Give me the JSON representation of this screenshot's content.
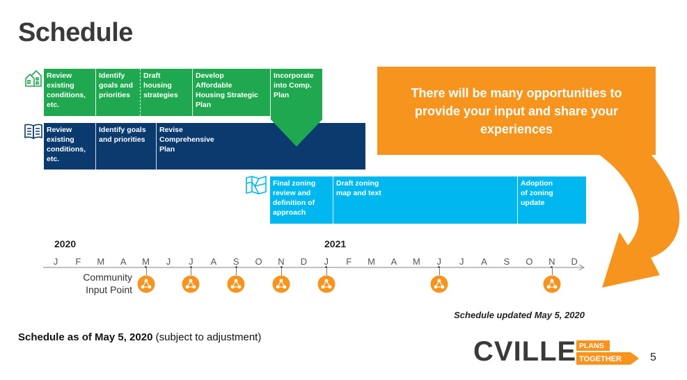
{
  "slide": {
    "title": "Schedule",
    "page_number": "5",
    "footnote_bold": "Schedule as of May 5, 2020",
    "footnote_rest": " (subject to adjustment)",
    "updated_note": "Schedule updated May 5, 2020"
  },
  "tracks": {
    "housing": {
      "icon": "houses-icon",
      "color": "#1fa84f",
      "cells": [
        "Review\nexisting\nconditions,\netc.",
        "Identify\ngoals and\npriorities",
        "Draft\nhousing\nstrategies",
        "Develop\nAffordable\nHousing Strategic\nPlan",
        "Incorporate\ninto Comp.\nPlan"
      ]
    },
    "comp_plan": {
      "icon": "open-book-icon",
      "color": "#0a3a6e",
      "cells": [
        "Review\nexisting\nconditions,\netc.",
        "Identify goals\nand priorities",
        "Revise\nComprehensive\nPlan"
      ]
    },
    "zoning": {
      "icon": "map-icon",
      "color": "#00b7ef",
      "cells": [
        "Final zoning\nreview and\ndefinition of\napproach",
        "Draft zoning\nmap and text",
        "Adoption\nof zoning\nupdate"
      ]
    }
  },
  "callout": {
    "text": "There will be many opportunities to provide your input and share your experiences",
    "color": "#f7941d"
  },
  "timeline": {
    "years": [
      "2020",
      "2021"
    ],
    "months": [
      "J",
      "F",
      "M",
      "A",
      "M",
      "J",
      "J",
      "A",
      "S",
      "O",
      "N",
      "D",
      "J",
      "F",
      "M",
      "A",
      "M",
      "J",
      "J",
      "A",
      "S",
      "O",
      "N",
      "D"
    ],
    "input_label": "Community\nInput Point",
    "input_point_months": [
      "2020-05",
      "2020-07",
      "2020-09",
      "2020-11",
      "2021-01",
      "2021-06",
      "2021-11"
    ],
    "input_icon": "community-network-icon"
  },
  "logo": {
    "word": "CVILLE",
    "tag_line1": "PLANS",
    "tag_line2": "TOGETHER"
  }
}
